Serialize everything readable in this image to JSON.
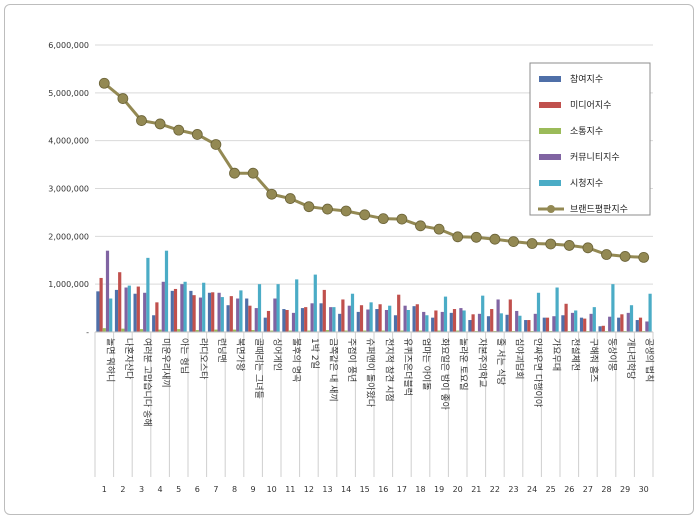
{
  "chart_data": {
    "type": "bar",
    "ylim": [
      0,
      6000000
    ],
    "yticks": [
      "-",
      "1,000,000",
      "2,000,000",
      "3,000,000",
      "4,000,000",
      "5,000,000",
      "6,000,000"
    ],
    "grid": true,
    "legend_position": "top-right",
    "ranks": [
      "1",
      "2",
      "3",
      "4",
      "5",
      "6",
      "7",
      "8",
      "9",
      "10",
      "11",
      "12",
      "13",
      "14",
      "15",
      "16",
      "17",
      "18",
      "19",
      "20",
      "21",
      "22",
      "23",
      "24",
      "25",
      "26",
      "27",
      "28",
      "29",
      "30"
    ],
    "categories": [
      "놀면 뭐하니",
      "나혼자산다",
      "여러분 고맙습니다 송해",
      "미운우리새끼",
      "아는 형님",
      "라디오스타",
      "런닝맨",
      "복면가왕",
      "골때리는 그녀들",
      "싱어게인",
      "불후의 명곡",
      "1박 2일",
      "금쪽같은 내 새끼",
      "주접이 풍년",
      "슈퍼맨이 돌아왔다",
      "전지적 참견 시점",
      "유퀴즈온더블럭",
      "엄마는 아이돌",
      "화요일은 밤이 좋아",
      "놀라운 토요일",
      "자본주의학교",
      "줄 서는 식당",
      "심야괴담회",
      "안싸우면 다행이야",
      "가요무대",
      "전설체전",
      "구해줘 홈즈",
      "동상이몽",
      "개나리학당",
      "공생의 법칙"
    ],
    "series": [
      {
        "name": "참여지수",
        "color": "#4f6fa8",
        "values": [
          850000,
          880000,
          800000,
          350000,
          860000,
          860000,
          820000,
          560000,
          700000,
          300000,
          480000,
          500000,
          600000,
          380000,
          420000,
          480000,
          350000,
          540000,
          300000,
          400000,
          250000,
          330000,
          360000,
          250000,
          300000,
          350000,
          300000,
          120000,
          300000,
          250000
        ]
      },
      {
        "name": "미디어지수",
        "color": "#c0504d",
        "values": [
          1130000,
          1250000,
          950000,
          620000,
          900000,
          770000,
          830000,
          750000,
          550000,
          440000,
          460000,
          520000,
          880000,
          680000,
          560000,
          580000,
          780000,
          580000,
          450000,
          480000,
          370000,
          480000,
          680000,
          250000,
          300000,
          590000,
          280000,
          130000,
          370000,
          300000
        ]
      },
      {
        "name": "소통지수",
        "color": "#9bbb59",
        "values": [
          80000,
          70000,
          60000,
          50000,
          60000,
          40000,
          50000,
          50000,
          40000,
          30000,
          30000,
          30000,
          40000,
          30000,
          30000,
          30000,
          30000,
          30000,
          30000,
          30000,
          20000,
          20000,
          20000,
          20000,
          20000,
          20000,
          20000,
          20000,
          20000,
          20000
        ]
      },
      {
        "name": "커뮤니티지수",
        "color": "#8064a2",
        "values": [
          1700000,
          930000,
          820000,
          1050000,
          1000000,
          720000,
          820000,
          700000,
          500000,
          700000,
          400000,
          600000,
          520000,
          550000,
          470000,
          460000,
          550000,
          420000,
          420000,
          500000,
          380000,
          680000,
          440000,
          380000,
          330000,
          400000,
          380000,
          320000,
          400000,
          220000
        ]
      },
      {
        "name": "시청지수",
        "color": "#4bacc6",
        "values": [
          700000,
          970000,
          1550000,
          1700000,
          1050000,
          1030000,
          730000,
          870000,
          1000000,
          1000000,
          1100000,
          1200000,
          520000,
          800000,
          620000,
          550000,
          460000,
          350000,
          740000,
          450000,
          760000,
          390000,
          340000,
          820000,
          930000,
          450000,
          520000,
          1000000,
          560000,
          800000
        ]
      },
      {
        "name": "브랜드평판지수",
        "color": "#938953",
        "values": [
          5200000,
          4880000,
          4420000,
          4350000,
          4220000,
          4130000,
          3920000,
          3320000,
          3320000,
          2880000,
          2790000,
          2620000,
          2570000,
          2530000,
          2450000,
          2370000,
          2360000,
          2220000,
          2150000,
          1990000,
          1980000,
          1940000,
          1890000,
          1850000,
          1840000,
          1810000,
          1760000,
          1620000,
          1580000,
          1560000
        ],
        "kind": "line"
      }
    ]
  }
}
